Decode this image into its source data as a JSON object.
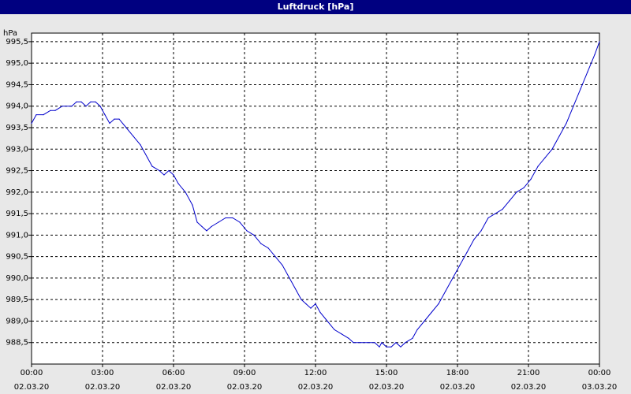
{
  "window": {
    "title": "Luftdruck [hPa]"
  },
  "colors": {
    "title_bar": "#000080",
    "series": "#0000cc",
    "grid": "#000000",
    "plot_bg": "#ffffff",
    "frame_bg": "#e8e8e8"
  },
  "chart_data": {
    "type": "line",
    "title": "Luftdruck [hPa]",
    "ylabel": "hPa",
    "xlabel": "",
    "ylim": [
      988.0,
      995.7
    ],
    "xlim": [
      0,
      24
    ],
    "grid": true,
    "legend": "none",
    "y_ticks": [
      "988,5",
      "989,0",
      "989,5",
      "990,0",
      "990,5",
      "991,0",
      "991,5",
      "992,0",
      "992,5",
      "993,0",
      "993,5",
      "994,0",
      "994,5",
      "995,0",
      "995,5"
    ],
    "x_ticks": [
      {
        "time": "00:00",
        "date": "02.03.20"
      },
      {
        "time": "03:00",
        "date": "02.03.20"
      },
      {
        "time": "06:00",
        "date": "02.03.20"
      },
      {
        "time": "09:00",
        "date": "02.03.20"
      },
      {
        "time": "12:00",
        "date": "02.03.20"
      },
      {
        "time": "15:00",
        "date": "02.03.20"
      },
      {
        "time": "18:00",
        "date": "02.03.20"
      },
      {
        "time": "21:00",
        "date": "02.03.20"
      },
      {
        "time": "00:00",
        "date": "03.03.20"
      }
    ],
    "series": [
      {
        "x": [
          0,
          0.2,
          0.5,
          0.8,
          1.0,
          1.3,
          1.7,
          1.9,
          2.1,
          2.3,
          2.5,
          2.7,
          2.9,
          3.1,
          3.3,
          3.5,
          3.7,
          4.0,
          4.3,
          4.6,
          4.9,
          5.1,
          5.4,
          5.6,
          5.8,
          6.0,
          6.2,
          6.5,
          6.8,
          7.0,
          7.2,
          7.4,
          7.6,
          7.9,
          8.2,
          8.5,
          8.8,
          9.1,
          9.4,
          9.7,
          10.0,
          10.3,
          10.6,
          10.9,
          11.2,
          11.4,
          11.6,
          11.8,
          12.0,
          12.2,
          12.5,
          12.8,
          13.1,
          13.4,
          13.6,
          13.9,
          14.2,
          14.5,
          14.7,
          14.8,
          15.0,
          15.2,
          15.4,
          15.6,
          15.8,
          16.1,
          16.3,
          16.6,
          16.9,
          17.2,
          17.5,
          17.8,
          18.1,
          18.4,
          18.7,
          19.0,
          19.3,
          19.6,
          19.9,
          20.2,
          20.5,
          20.8,
          21.1,
          21.4,
          21.7,
          22.0,
          22.3,
          22.6,
          22.9,
          23.2,
          23.5,
          23.8,
          24.0
        ],
        "y": [
          993.6,
          993.8,
          993.8,
          993.9,
          993.9,
          994.0,
          994.0,
          994.1,
          994.1,
          994.0,
          994.1,
          994.1,
          994.0,
          993.8,
          993.6,
          993.7,
          993.7,
          993.5,
          993.3,
          993.1,
          992.8,
          992.6,
          992.5,
          992.4,
          992.5,
          992.4,
          992.2,
          992.0,
          991.7,
          991.3,
          991.2,
          991.1,
          991.2,
          991.3,
          991.4,
          991.4,
          991.3,
          991.1,
          991.0,
          990.8,
          990.7,
          990.5,
          990.3,
          990.0,
          989.7,
          989.5,
          989.4,
          989.3,
          989.4,
          989.2,
          989.0,
          988.8,
          988.7,
          988.6,
          988.5,
          988.5,
          988.5,
          988.5,
          988.4,
          988.5,
          988.4,
          988.4,
          988.5,
          988.4,
          988.5,
          988.6,
          988.8,
          989.0,
          989.2,
          989.4,
          989.7,
          990.0,
          990.3,
          990.6,
          990.9,
          991.1,
          991.4,
          991.5,
          991.6,
          991.8,
          992.0,
          992.1,
          992.3,
          992.6,
          992.8,
          993.0,
          993.3,
          993.6,
          994.0,
          994.4,
          994.8,
          995.2,
          995.5
        ]
      }
    ]
  }
}
